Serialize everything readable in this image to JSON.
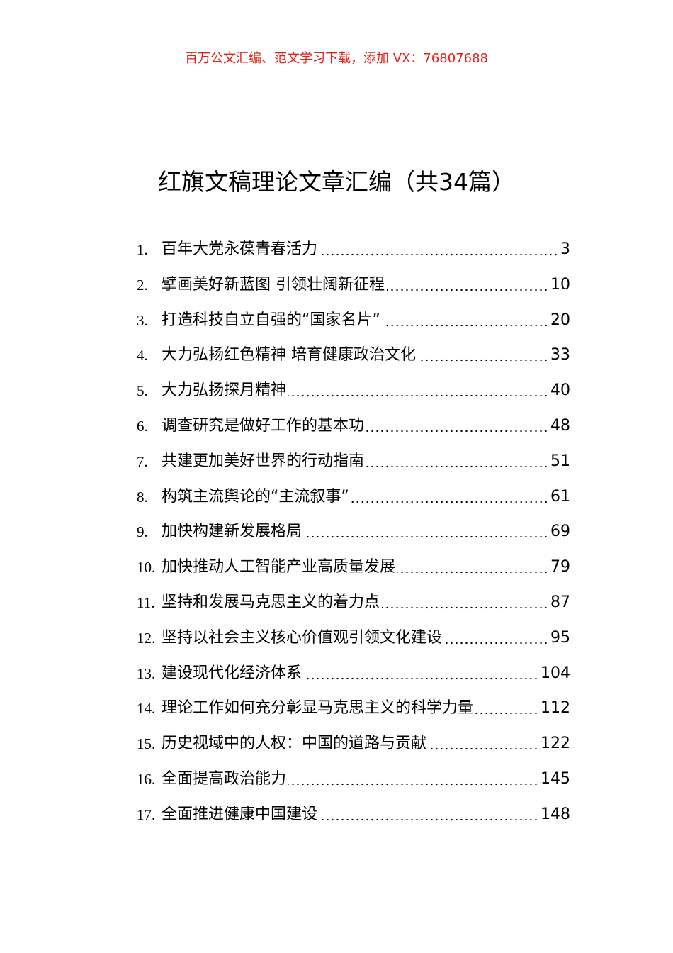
{
  "header": {
    "note": "百万公文汇编、范文学习下载，添加 VX：76807688"
  },
  "title": "红旗文稿理论文章汇编（共34篇）",
  "toc": [
    {
      "number": "1.",
      "title": "百年大党永葆青春活力",
      "page": 3
    },
    {
      "number": "2.",
      "title": "擘画美好新蓝图 引领壮阔新征程",
      "page": 10
    },
    {
      "number": "3.",
      "title": "打造科技自立自强的“国家名片”",
      "page": 20
    },
    {
      "number": "4.",
      "title": "大力弘扬红色精神 培育健康政治文化",
      "page": 33
    },
    {
      "number": "5.",
      "title": "大力弘扬探月精神",
      "page": 40
    },
    {
      "number": "6.",
      "title": "调查研究是做好工作的基本功",
      "page": 48
    },
    {
      "number": "7.",
      "title": "共建更加美好世界的行动指南",
      "page": 51
    },
    {
      "number": "8.",
      "title": "构筑主流舆论的“主流叙事”",
      "page": 61
    },
    {
      "number": "9.",
      "title": "加快构建新发展格局",
      "page": 69
    },
    {
      "number": "10.",
      "title": "加快推动人工智能产业高质量发展",
      "page": 79
    },
    {
      "number": "11.",
      "title": "坚持和发展马克思主义的着力点",
      "page": 87
    },
    {
      "number": "12.",
      "title": "坚持以社会主义核心价值观引领文化建设",
      "page": 95
    },
    {
      "number": "13.",
      "title": "建设现代化经济体系",
      "page": 104
    },
    {
      "number": "14.",
      "title": "理论工作如何充分彰显马克思主义的科学力量",
      "page": 112
    },
    {
      "number": "15.",
      "title": "历史视域中的人权：中国的道路与贡献",
      "page": 122
    },
    {
      "number": "16.",
      "title": "全面提高政治能力",
      "page": 145
    },
    {
      "number": "17.",
      "title": "全面推进健康中国建设",
      "page": 148
    }
  ]
}
